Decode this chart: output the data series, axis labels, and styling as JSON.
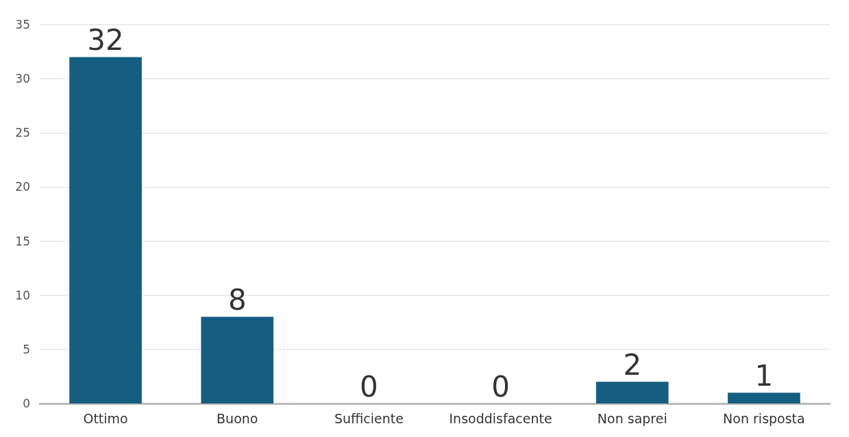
{
  "chart_data": {
    "type": "bar",
    "categories": [
      "Ottimo",
      "Buono",
      "Sufficiente",
      "Insoddisfacente",
      "Non saprei",
      "Non risposta"
    ],
    "values": [
      32,
      8,
      0,
      0,
      2,
      1
    ],
    "color": "#155e7f",
    "ylim": [
      0,
      35
    ],
    "yticks": [
      0,
      5,
      10,
      15,
      20,
      25,
      30,
      35
    ],
    "grid": "y",
    "data_labels": true
  }
}
